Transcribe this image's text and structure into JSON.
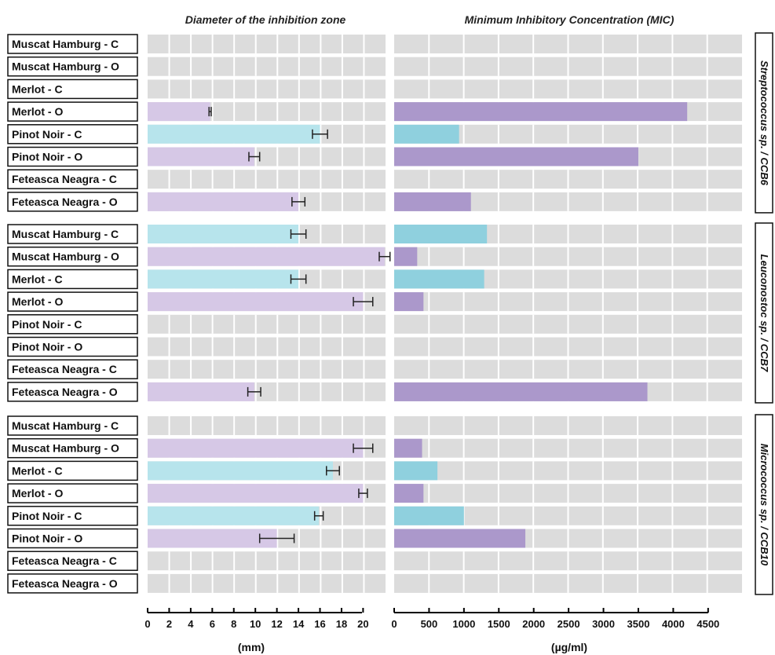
{
  "chart_data": [
    {
      "type": "bar",
      "orientation": "horizontal",
      "title": "Diameter of the inhibition zone",
      "xlabel": "(mm)",
      "xlim": [
        0,
        22
      ],
      "xticks": [
        "0",
        "2",
        "4",
        "6",
        "8",
        "10",
        "12",
        "14",
        "16",
        "18",
        "20"
      ],
      "grid": true,
      "groups": [
        {
          "label": "Streptococcus sp. / CCB6",
          "rows": [
            {
              "label": "Muscat Hamburg - C",
              "value": null,
              "error": null
            },
            {
              "label": "Muscat Hamburg - O",
              "value": null,
              "error": null
            },
            {
              "label": "Merlot - C",
              "value": null,
              "error": null
            },
            {
              "label": "Merlot - O",
              "value": 5.8,
              "error": 0.1
            },
            {
              "label": "Pinot Noir - C",
              "value": 16,
              "error": 0.7
            },
            {
              "label": "Pinot Noir - O",
              "value": 9.9,
              "error": 0.5
            },
            {
              "label": "Feteasca Neagra - C",
              "value": null,
              "error": null
            },
            {
              "label": "Feteasca Neagra - O",
              "value": 14,
              "error": 0.6
            }
          ]
        },
        {
          "label": "Leuconostoc sp. / CCB7",
          "rows": [
            {
              "label": "Muscat Hamburg - C",
              "value": 14,
              "error": 0.7
            },
            {
              "label": "Muscat Hamburg - O",
              "value": 22,
              "error": 0.5
            },
            {
              "label": "Merlot - C",
              "value": 14,
              "error": 0.7
            },
            {
              "label": "Merlot - O",
              "value": 20,
              "error": 0.9
            },
            {
              "label": "Pinot Noir - C",
              "value": null,
              "error": null
            },
            {
              "label": "Pinot Noir - O",
              "value": null,
              "error": null
            },
            {
              "label": "Feteasca Neagra - C",
              "value": null,
              "error": null
            },
            {
              "label": "Feteasca Neagra - O",
              "value": 9.9,
              "error": 0.6
            }
          ]
        },
        {
          "label": "Micrococcus sp. / CCB10",
          "rows": [
            {
              "label": "Muscat Hamburg - C",
              "value": null,
              "error": null
            },
            {
              "label": "Muscat Hamburg - O",
              "value": 20,
              "error": 0.9
            },
            {
              "label": "Merlot - C",
              "value": 17.2,
              "error": 0.6
            },
            {
              "label": "Merlot - O",
              "value": 20,
              "error": 0.4
            },
            {
              "label": "Pinot Noir - C",
              "value": 15.9,
              "error": 0.4
            },
            {
              "label": "Pinot Noir - O",
              "value": 12,
              "error": 1.6
            },
            {
              "label": "Feteasca Neagra - C",
              "value": null,
              "error": null
            },
            {
              "label": "Feteasca Neagra - O",
              "value": null,
              "error": null
            }
          ]
        }
      ]
    },
    {
      "type": "bar",
      "orientation": "horizontal",
      "title": "Minimum Inhibitory Concentration (MIC)",
      "xlabel": "(µg/ml)",
      "xlim": [
        0,
        5000
      ],
      "xticks": [
        "0",
        "500",
        "1000",
        "1500",
        "2000",
        "2500",
        "3000",
        "3500",
        "4000",
        "4500"
      ],
      "grid": true,
      "groups": [
        {
          "label": "Streptococcus sp. / CCB6",
          "rows": [
            {
              "label": "Muscat Hamburg - C",
              "value": null
            },
            {
              "label": "Muscat Hamburg - O",
              "value": null
            },
            {
              "label": "Merlot - C",
              "value": null
            },
            {
              "label": "Merlot - O",
              "value": 4200
            },
            {
              "label": "Pinot Noir - C",
              "value": 930
            },
            {
              "label": "Pinot Noir - O",
              "value": 3500
            },
            {
              "label": "Feteasca Neagra - C",
              "value": null
            },
            {
              "label": "Feteasca Neagra - O",
              "value": 1100
            }
          ]
        },
        {
          "label": "Leuconostoc sp. / CCB7",
          "rows": [
            {
              "label": "Muscat Hamburg - C",
              "value": 1330
            },
            {
              "label": "Muscat Hamburg - O",
              "value": 330
            },
            {
              "label": "Merlot - C",
              "value": 1290
            },
            {
              "label": "Merlot - O",
              "value": 420
            },
            {
              "label": "Pinot Noir - C",
              "value": null
            },
            {
              "label": "Pinot Noir - O",
              "value": null
            },
            {
              "label": "Feteasca Neagra - C",
              "value": null
            },
            {
              "label": "Feteasca Neagra - O",
              "value": 3630
            }
          ]
        },
        {
          "label": "Micrococcus sp. / CCB10",
          "rows": [
            {
              "label": "Muscat Hamburg - C",
              "value": null
            },
            {
              "label": "Muscat Hamburg - O",
              "value": 400
            },
            {
              "label": "Merlot - C",
              "value": 620
            },
            {
              "label": "Merlot - O",
              "value": 420
            },
            {
              "label": "Pinot Noir - C",
              "value": 1000
            },
            {
              "label": "Pinot Noir - O",
              "value": 1880
            },
            {
              "label": "Feteasca Neagra - C",
              "value": null
            },
            {
              "label": "Feteasca Neagra - O",
              "value": null
            }
          ]
        }
      ]
    }
  ],
  "colors": {
    "C_zone": "#b7e4ec",
    "O_zone": "#d6c8e6",
    "C_mic": "#8fd0de",
    "O_mic": "#ab98cb",
    "cell": "#dcdcdc",
    "grid": "#ffffff"
  }
}
